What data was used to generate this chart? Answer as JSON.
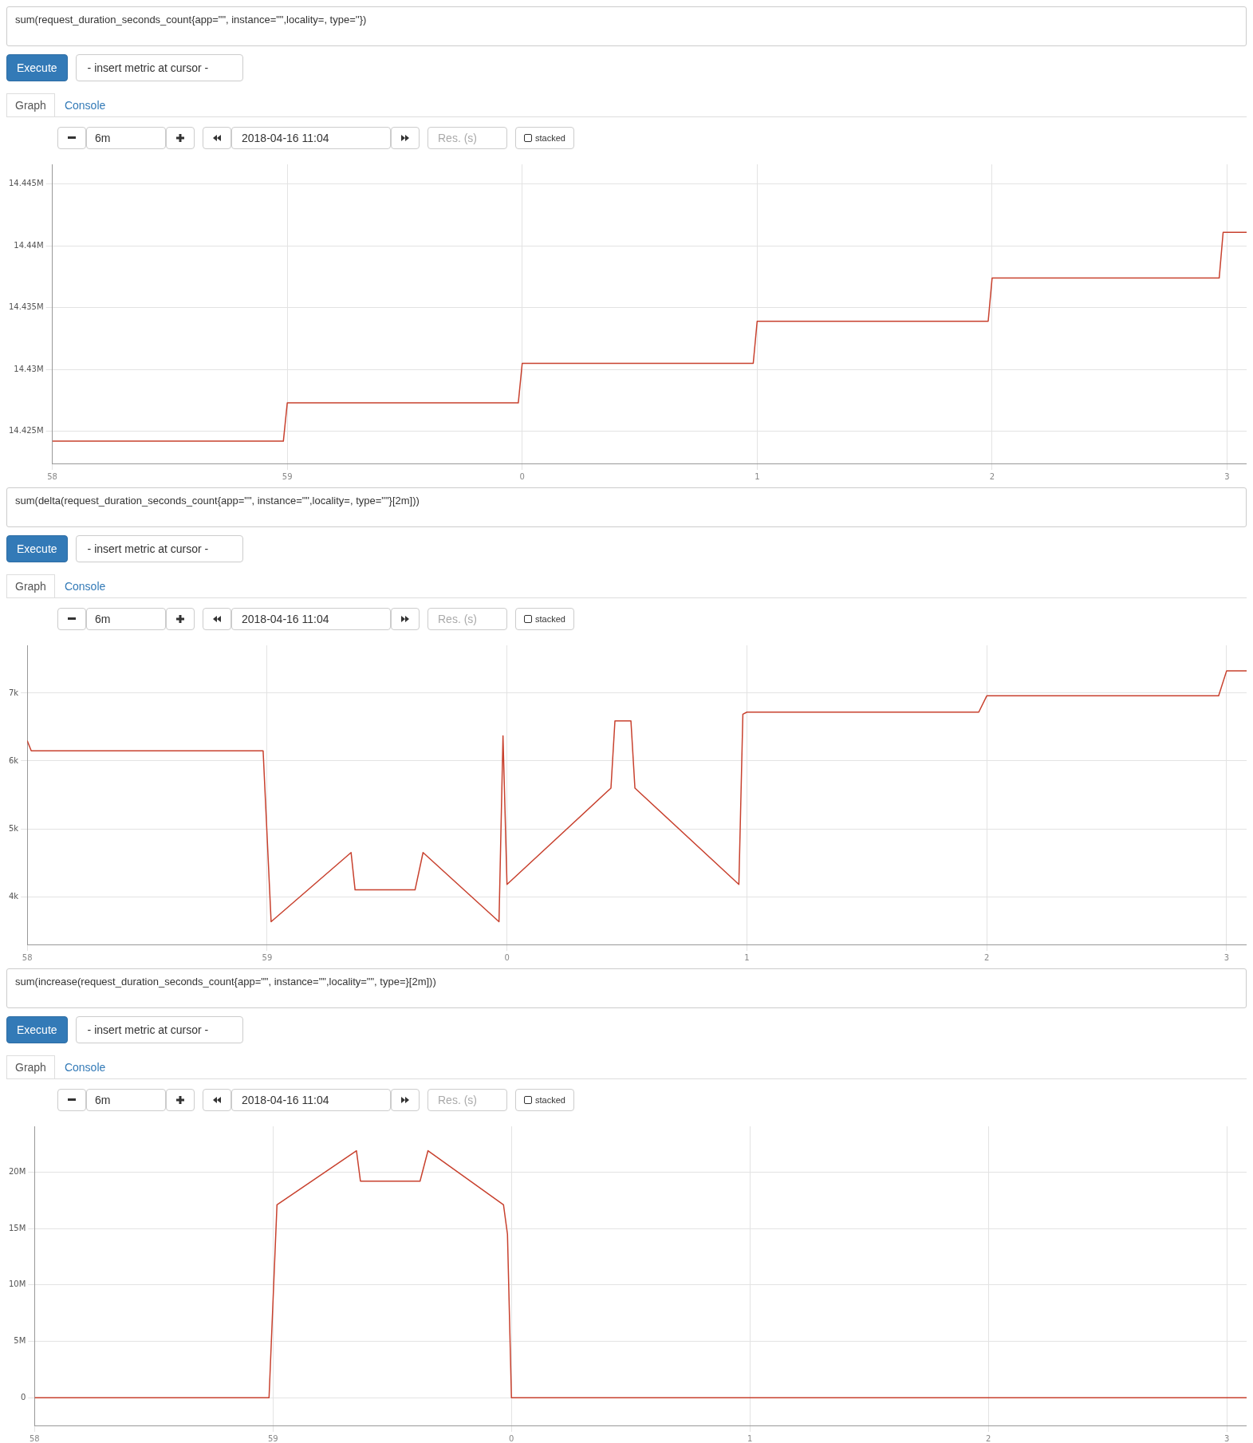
{
  "chart_data": [
    {
      "type": "line",
      "title": "sum(request_duration_seconds_count{app=\"\", instance=\"\",locality=, type=''})",
      "annotations": [
        "Execute",
        "- insert metric at cursor -",
        "Graph",
        "Console",
        "6m",
        "2018-04-16 11:04",
        "Res. (s)",
        "stacked"
      ],
      "x": [
        "2018-04-16T10:58:00",
        "2018-04-16T10:58:59",
        "2018-04-16T10:59:00",
        "2018-04-16T10:59:59",
        "2018-04-16T11:00:00",
        "2018-04-16T11:00:59",
        "2018-04-16T11:01:00",
        "2018-04-16T11:01:59",
        "2018-04-16T11:02:00",
        "2018-04-16T11:02:58",
        "2018-04-16T11:02:59",
        "2018-04-16T11:03:05"
      ],
      "series": [
        {
          "color": "#c8412e",
          "values": [
            14424200,
            14424200,
            14427300,
            14427300,
            14430500,
            14430500,
            14433900,
            14433900,
            14437400,
            14437400,
            14441100,
            14441100
          ]
        }
      ],
      "xlim": [
        "2018-04-16T10:58:00",
        "2018-04-16T11:03:05"
      ],
      "xticks": [
        {
          "value": "2018-04-16T10:58",
          "label": "58"
        },
        {
          "value": "2018-04-16T10:59",
          "label": "59"
        },
        {
          "value": "2018-04-16T11:00",
          "label": "0"
        },
        {
          "value": "2018-04-16T11:01",
          "label": "1"
        },
        {
          "value": "2018-04-16T11:02",
          "label": "2"
        },
        {
          "value": "2018-04-16T11:03",
          "label": "3"
        }
      ],
      "ylim": [
        14422400,
        14446600
      ],
      "yticks": [
        {
          "value": 14425000,
          "label": "14.425M"
        },
        {
          "value": 14430000,
          "label": "14.43M"
        },
        {
          "value": 14435000,
          "label": "14.435M"
        },
        {
          "value": 14440000,
          "label": "14.44M"
        },
        {
          "value": 14445000,
          "label": "14.445M"
        }
      ],
      "grid": true,
      "legend": false
    },
    {
      "type": "line",
      "title": "sum(delta(request_duration_seconds_count{app=\"\", instance=\"\",locality=, type=\"\"}[2m]))",
      "annotations": [
        "Execute",
        "- insert metric at cursor -",
        "Graph",
        "Console",
        "6m",
        "2018-04-16 11:04",
        "Res. (s)",
        "stacked"
      ],
      "x": [
        "2018-04-16T10:58:00",
        "2018-04-16T10:58:01",
        "2018-04-16T10:58:59",
        "2018-04-16T10:59:01",
        "2018-04-16T10:59:21",
        "2018-04-16T10:59:22",
        "2018-04-16T10:59:37",
        "2018-04-16T10:59:39",
        "2018-04-16T10:59:58",
        "2018-04-16T10:59:59",
        "2018-04-16T11:00:00",
        "2018-04-16T11:00:26",
        "2018-04-16T11:00:27",
        "2018-04-16T11:00:31",
        "2018-04-16T11:00:32",
        "2018-04-16T11:00:58",
        "2018-04-16T11:00:59",
        "2018-04-16T11:01:00",
        "2018-04-16T11:01:58",
        "2018-04-16T11:02:00",
        "2018-04-16T11:02:58",
        "2018-04-16T11:03:00",
        "2018-04-16T11:03:05"
      ],
      "series": [
        {
          "color": "#c8412e",
          "values": [
            6300,
            6150,
            6150,
            3630,
            4650,
            4100,
            4100,
            4650,
            3630,
            6370,
            4180,
            5600,
            6590,
            6590,
            5600,
            4180,
            6690,
            6720,
            6720,
            6960,
            6960,
            7330,
            7330
          ]
        }
      ],
      "xlim": [
        "2018-04-16T10:58:00",
        "2018-04-16T11:03:05"
      ],
      "xticks": [
        {
          "value": "2018-04-16T10:58",
          "label": "58"
        },
        {
          "value": "2018-04-16T10:59",
          "label": "59"
        },
        {
          "value": "2018-04-16T11:00",
          "label": "0"
        },
        {
          "value": "2018-04-16T11:01",
          "label": "1"
        },
        {
          "value": "2018-04-16T11:02",
          "label": "2"
        },
        {
          "value": "2018-04-16T11:03",
          "label": "3"
        }
      ],
      "ylim": [
        3295,
        7705
      ],
      "yticks": [
        {
          "value": 4000,
          "label": "4k"
        },
        {
          "value": 5000,
          "label": "5k"
        },
        {
          "value": 6000,
          "label": "6k"
        },
        {
          "value": 7000,
          "label": "7k"
        }
      ],
      "grid": true,
      "legend": false
    },
    {
      "type": "line",
      "title": "sum(increase(request_duration_seconds_count{app=\"\", instance=\"\",locality=\"\", type=}[2m]))",
      "annotations": [
        "Execute",
        "- insert metric at cursor -",
        "Graph",
        "Console",
        "6m",
        "2018-04-16 11:04",
        "Res. (s)",
        "stacked"
      ],
      "x": [
        "2018-04-16T10:58:00",
        "2018-04-16T10:58:59",
        "2018-04-16T10:59:01",
        "2018-04-16T10:59:21",
        "2018-04-16T10:59:22",
        "2018-04-16T10:59:37",
        "2018-04-16T10:59:39",
        "2018-04-16T10:59:58",
        "2018-04-16T10:59:59",
        "2018-04-16T11:00:00",
        "2018-04-16T11:03:05"
      ],
      "series": [
        {
          "color": "#c8412e",
          "values": [
            0,
            0,
            17100000,
            21900000,
            19200000,
            19200000,
            21900000,
            17100000,
            14500000,
            0,
            0
          ]
        }
      ],
      "xlim": [
        "2018-04-16T10:58:00",
        "2018-04-16T11:03:05"
      ],
      "xticks": [
        {
          "value": "2018-04-16T10:58",
          "label": "58"
        },
        {
          "value": "2018-04-16T10:59",
          "label": "59"
        },
        {
          "value": "2018-04-16T11:00",
          "label": "0"
        },
        {
          "value": "2018-04-16T11:01",
          "label": "1"
        },
        {
          "value": "2018-04-16T11:02",
          "label": "2"
        },
        {
          "value": "2018-04-16T11:03",
          "label": "3"
        }
      ],
      "ylim": [
        -2450000,
        24060000
      ],
      "yticks": [
        0,
        {
          "value": 5000000,
          "label": "5M"
        },
        {
          "value": 10000000,
          "label": "10M"
        },
        {
          "value": 15000000,
          "label": "15M"
        },
        {
          "value": 20000000,
          "label": "20M"
        }
      ],
      "grid": true,
      "legend": false
    }
  ]
}
